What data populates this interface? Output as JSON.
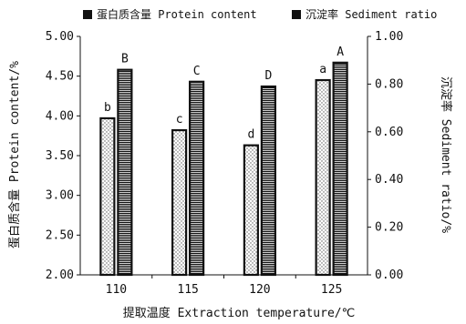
{
  "chart_data": {
    "type": "bar",
    "categories": [
      "110",
      "115",
      "120",
      "125"
    ],
    "series": [
      {
        "name": "蛋白质含量 Protein content",
        "axis": "left",
        "values": [
          3.97,
          3.82,
          3.63,
          4.45
        ],
        "labels": [
          "b",
          "c",
          "d",
          "a"
        ],
        "pattern": "dotted"
      },
      {
        "name": "沉淀率 Sediment ratio",
        "axis": "right",
        "values": [
          0.86,
          0.81,
          0.79,
          0.89
        ],
        "labels": [
          "B",
          "C",
          "D",
          "A"
        ],
        "pattern": "hatched"
      }
    ],
    "xlabel": "提取温度 Extraction temperature/℃",
    "ylabel_left": "蛋白质含量 Protein content/%",
    "ylabel_right": "沉淀率 Sediment ratio/%",
    "ylim_left": [
      2.0,
      5.0
    ],
    "ylim_right": [
      0.0,
      1.0
    ],
    "yticks_left": [
      "2.00",
      "2.50",
      "3.00",
      "3.50",
      "4.00",
      "4.50",
      "5.00"
    ],
    "yticks_right": [
      "0.00",
      "0.20",
      "0.40",
      "0.60",
      "0.80",
      "1.00"
    ],
    "legend_position": "top",
    "grid": false
  }
}
